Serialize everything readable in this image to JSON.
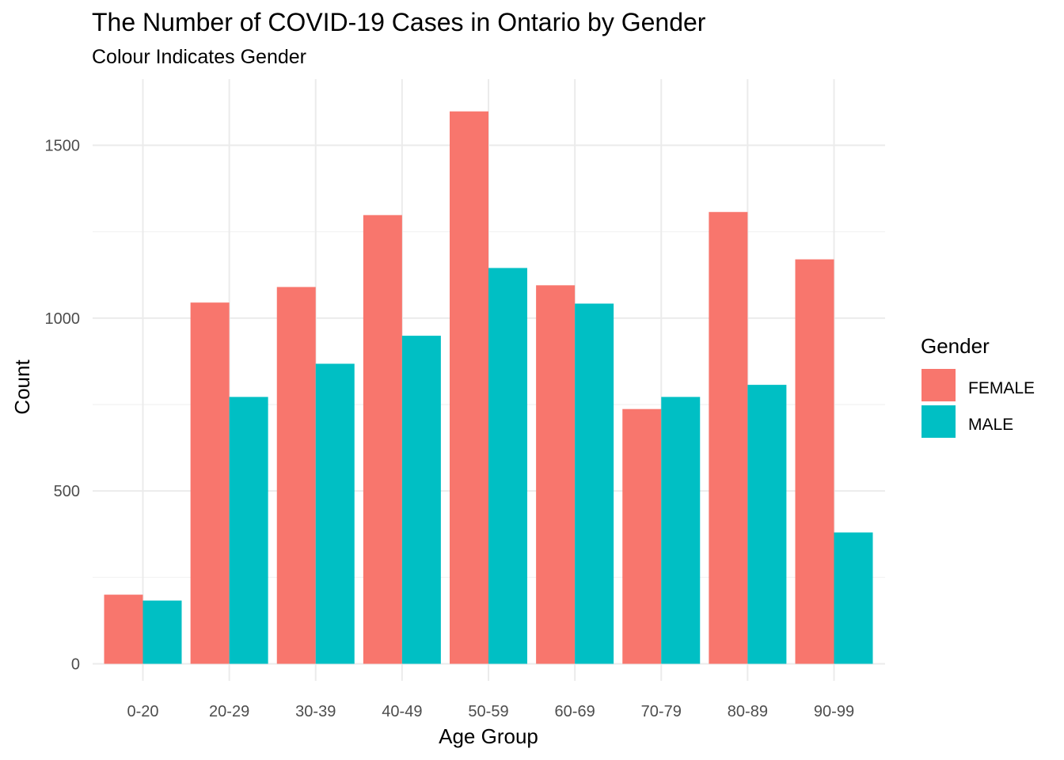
{
  "chart_data": {
    "type": "bar",
    "title": "The Number of COVID-19 Cases in Ontario by Gender",
    "subtitle": "Colour Indicates Gender",
    "xlabel": "Age Group",
    "ylabel": "Count",
    "categories": [
      "0-20",
      "20-29",
      "30-39",
      "40-49",
      "50-59",
      "60-69",
      "70-79",
      "80-89",
      "90-99"
    ],
    "series": [
      {
        "name": "FEMALE",
        "color": "#F8766D",
        "values": [
          200,
          1045,
          1090,
          1298,
          1598,
          1095,
          737,
          1307,
          1170
        ]
      },
      {
        "name": "MALE",
        "color": "#00BFC4",
        "values": [
          183,
          772,
          868,
          949,
          1145,
          1042,
          772,
          807,
          380
        ]
      }
    ],
    "yticks": [
      0,
      500,
      1000,
      1500
    ],
    "ylim": [
      0,
      1700
    ],
    "grid": true,
    "legend": {
      "title": "Gender",
      "position": "right"
    }
  }
}
